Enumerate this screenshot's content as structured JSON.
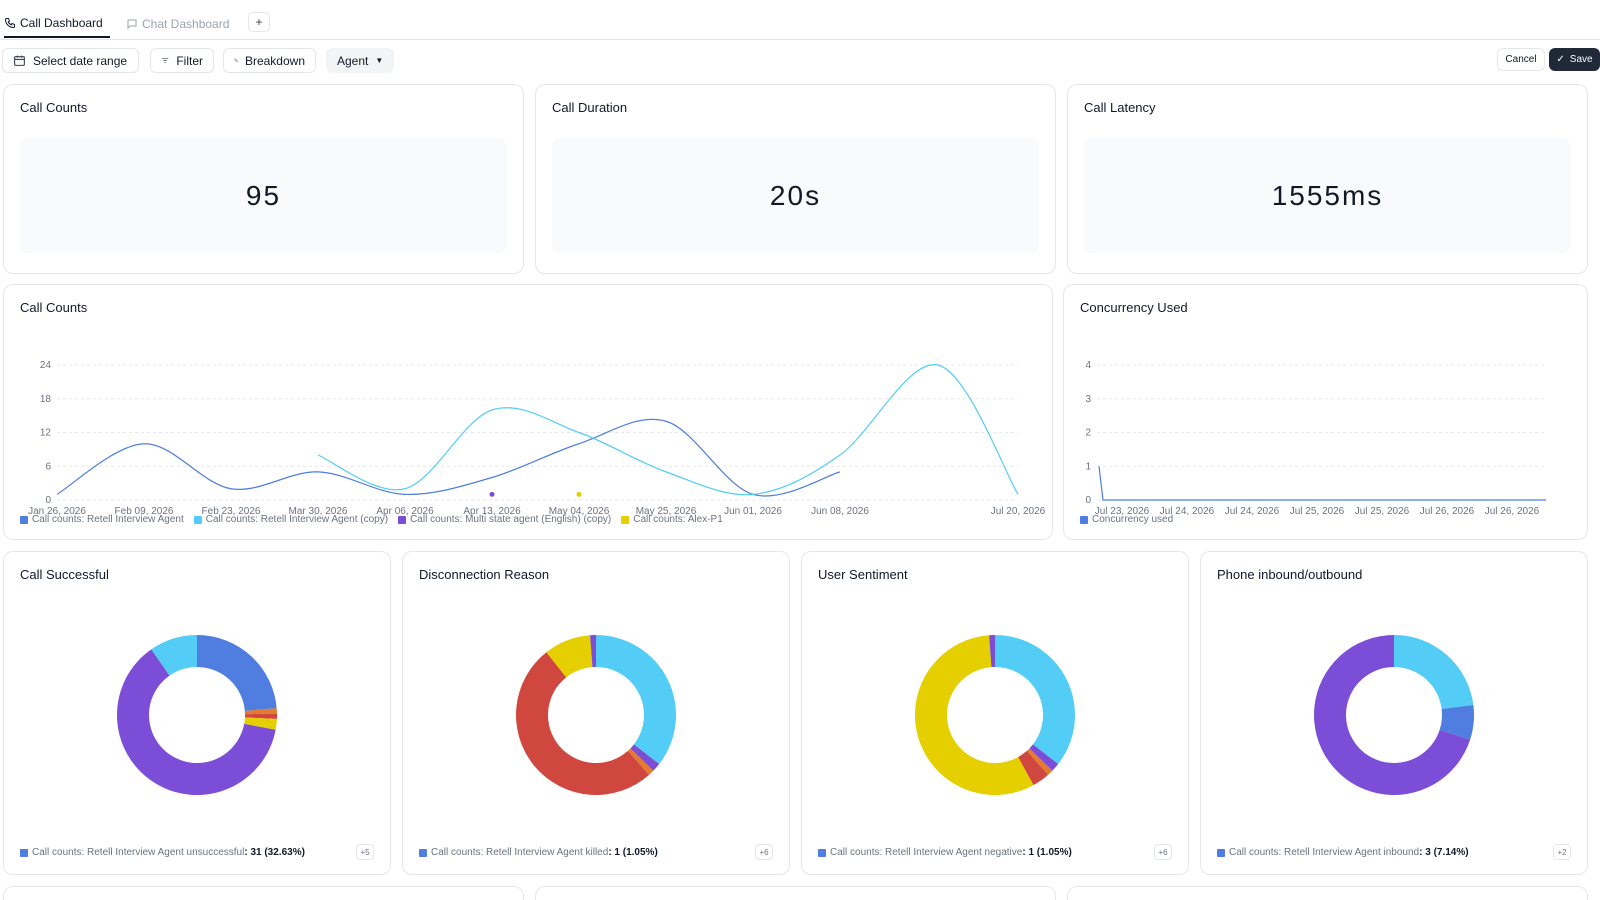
{
  "tabs": [
    {
      "label": "Call Dashboard",
      "active": true
    },
    {
      "label": "Chat Dashboard",
      "active": false
    }
  ],
  "tab_add_label": "+",
  "toolbar": {
    "date_range_label": "Select date range",
    "filter_label": "Filter",
    "breakdown_label": "Breakdown",
    "agent_label": "Agent",
    "cancel_label": "Cancel",
    "save_label": "Save"
  },
  "metrics": [
    {
      "title": "Call Counts",
      "value": "95"
    },
    {
      "title": "Call Duration",
      "value": "20s"
    },
    {
      "title": "Call Latency",
      "value": "1555ms"
    }
  ],
  "colors": {
    "series_blue": "#4f7ee0",
    "series_cyan": "#53cdf5",
    "series_purple": "#7c4dd6",
    "series_yellow": "#e6cf00",
    "series_red": "#d0473f",
    "series_orange": "#e47a2e"
  },
  "line_chart": {
    "title": "Call Counts",
    "legend": [
      "Call counts: Retell Interview Agent",
      "Call counts: Retell Interview Agent (copy)",
      "Call counts: Multi state agent (English) (copy)",
      "Call counts: Alex-P1"
    ]
  },
  "concurrency_chart": {
    "title": "Concurrency Used",
    "legend": [
      "Concurrency used"
    ]
  },
  "donuts": [
    {
      "title": "Call Successful",
      "legend_prefix": "Call counts: Retell Interview Agent unsuccessful",
      "legend_value": ": 31 (32.63%)",
      "more": "+5"
    },
    {
      "title": "Disconnection Reason",
      "legend_prefix": "Call counts: Retell Interview Agent killed",
      "legend_value": ": 1 (1.05%)",
      "more": "+6"
    },
    {
      "title": "User Sentiment",
      "legend_prefix": "Call counts: Retell Interview Agent negative",
      "legend_value": ": 1 (1.05%)",
      "more": "+6"
    },
    {
      "title": "Phone inbound/outbound",
      "legend_prefix": "Call counts: Retell Interview Agent inbound",
      "legend_value": ": 3 (7.14%)",
      "more": "+2"
    }
  ],
  "chart_data": [
    {
      "type": "line",
      "title": "Call Counts",
      "x": [
        "Jan 26, 2026",
        "Feb 09, 2026",
        "Feb 23, 2026",
        "Mar 30, 2026",
        "Apr 06, 2026",
        "Apr 13, 2026",
        "May 04, 2026",
        "May 25, 2026",
        "Jun 01, 2026",
        "Jun 08, 2026",
        "Jul 20, 2026"
      ],
      "yticks": [
        0,
        6,
        12,
        18,
        24
      ],
      "ylim": [
        0,
        24
      ],
      "grid": true,
      "legend_position": "bottom-left",
      "series": [
        {
          "name": "Call counts: Retell Interview Agent",
          "color": "#4f7ee0",
          "values": [
            1,
            10,
            2,
            5,
            1,
            4,
            10,
            14,
            1,
            5,
            null
          ]
        },
        {
          "name": "Call counts: Retell Interview Agent (copy)",
          "color": "#53cdf5",
          "values": [
            null,
            null,
            null,
            8,
            2,
            16,
            12,
            5,
            1,
            8,
            1
          ],
          "peak": {
            "x_between": [
              "Jun 08, 2026",
              "Jul 20, 2026"
            ],
            "y": 24
          }
        },
        {
          "name": "Call counts: Multi state agent (English) (copy)",
          "color": "#7c4dd6",
          "values": [
            null,
            null,
            null,
            null,
            null,
            1,
            null,
            null,
            null,
            null,
            null
          ]
        },
        {
          "name": "Call counts: Alex-P1",
          "color": "#e6cf00",
          "values": [
            null,
            null,
            null,
            null,
            null,
            null,
            1,
            null,
            null,
            null,
            null
          ]
        }
      ]
    },
    {
      "type": "line",
      "title": "Concurrency Used",
      "x": [
        "Jul 23, 2026",
        "Jul 24, 2026",
        "Jul 24, 2026",
        "Jul 25, 2026",
        "Jul 25, 2026",
        "Jul 26, 2026",
        "Jul 26, 2026"
      ],
      "yticks": [
        0,
        1,
        2,
        3,
        4
      ],
      "ylim": [
        0,
        4
      ],
      "grid": true,
      "series": [
        {
          "name": "Concurrency used",
          "color": "#4f7ee0",
          "values": [
            1,
            0,
            0,
            0,
            0,
            0,
            0
          ]
        }
      ]
    },
    {
      "type": "pie",
      "title": "Call Successful",
      "slices": [
        {
          "color": "#4f7ee0",
          "value": 22
        },
        {
          "color": "#e47a2e",
          "value": 1
        },
        {
          "color": "#d0473f",
          "value": 1
        },
        {
          "color": "#e6cf00",
          "value": 2
        },
        {
          "color": "#7c4dd6",
          "value": 58
        },
        {
          "color": "#53cdf5",
          "value": 9
        }
      ]
    },
    {
      "type": "pie",
      "title": "Disconnection Reason",
      "slices": [
        {
          "color": "#53cdf5",
          "value": 30
        },
        {
          "color": "#7c4dd6",
          "value": 1.5
        },
        {
          "color": "#e47a2e",
          "value": 1
        },
        {
          "color": "#d0473f",
          "value": 43
        },
        {
          "color": "#e6cf00",
          "value": 8
        },
        {
          "color": "#7c4dd6",
          "value": 1
        }
      ]
    },
    {
      "type": "pie",
      "title": "User Sentiment",
      "slices": [
        {
          "color": "#53cdf5",
          "value": 30
        },
        {
          "color": "#7c4dd6",
          "value": 1.5
        },
        {
          "color": "#e47a2e",
          "value": 1
        },
        {
          "color": "#d0473f",
          "value": 3
        },
        {
          "color": "#e6cf00",
          "value": 48
        },
        {
          "color": "#7c4dd6",
          "value": 1
        }
      ]
    },
    {
      "type": "pie",
      "title": "Phone inbound/outbound",
      "slices": [
        {
          "color": "#53cdf5",
          "value": 23
        },
        {
          "color": "#4f7ee0",
          "value": 7
        },
        {
          "color": "#7c4dd6",
          "value": 70
        }
      ]
    }
  ]
}
